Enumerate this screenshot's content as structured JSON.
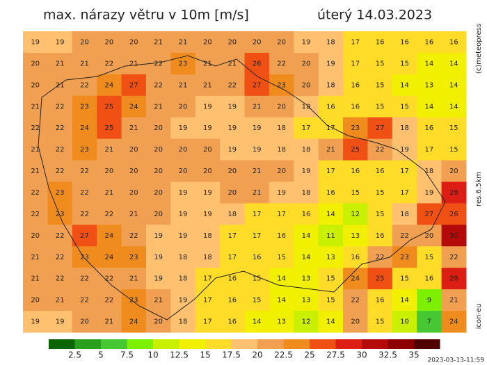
{
  "header": {
    "title": "max. nárazy větru v 10m [m/s]",
    "date": "úterý 14.03.2023"
  },
  "side_labels": [
    "(c)meteopress",
    "res.6.5km",
    "icon-eu"
  ],
  "timestamp": "2023-03-13-11:59",
  "legend": {
    "ticks": [
      2.5,
      5,
      7.5,
      10,
      12.5,
      15,
      17.5,
      20,
      22.5,
      25,
      27.5,
      30,
      32.5,
      35
    ],
    "colors": [
      "#0a6400",
      "#28a01e",
      "#46c832",
      "#7cf000",
      "#c8f000",
      "#f0f000",
      "#ffdc28",
      "#ffc070",
      "#f0a050",
      "#f08c1e",
      "#f05014",
      "#dc1e14",
      "#b40a0a",
      "#8c0000",
      "#500000"
    ]
  },
  "field": {
    "values": [
      [
        19,
        19,
        20,
        20,
        20,
        21,
        21,
        20,
        20,
        20,
        20,
        19,
        18,
        17,
        16,
        16,
        16,
        16
      ],
      [
        20,
        21,
        21,
        22,
        21,
        22,
        23,
        21,
        21,
        26,
        22,
        20,
        19,
        17,
        15,
        15,
        14,
        14
      ],
      [
        20,
        21,
        22,
        24,
        27,
        22,
        21,
        21,
        22,
        27,
        23,
        20,
        18,
        16,
        15,
        14,
        13,
        14
      ],
      [
        21,
        22,
        23,
        25,
        24,
        21,
        20,
        19,
        19,
        21,
        20,
        18,
        16,
        16,
        15,
        15,
        14,
        14
      ],
      [
        22,
        22,
        24,
        25,
        21,
        20,
        19,
        19,
        19,
        19,
        18,
        17,
        17,
        23,
        27,
        18,
        16,
        15
      ],
      [
        21,
        22,
        23,
        21,
        20,
        20,
        20,
        20,
        19,
        19,
        18,
        18,
        21,
        25,
        22,
        19,
        17,
        15
      ],
      [
        21,
        22,
        22,
        20,
        20,
        20,
        20,
        20,
        20,
        21,
        20,
        19,
        17,
        16,
        16,
        17,
        18,
        20
      ],
      [
        22,
        23,
        22,
        21,
        20,
        20,
        19,
        19,
        20,
        21,
        19,
        18,
        16,
        15,
        15,
        17,
        19,
        28
      ],
      [
        22,
        23,
        22,
        22,
        21,
        20,
        19,
        19,
        18,
        17,
        17,
        16,
        14,
        12,
        15,
        18,
        27,
        26
      ],
      [
        20,
        22,
        27,
        24,
        22,
        19,
        19,
        18,
        17,
        17,
        16,
        14,
        11,
        13,
        16,
        22,
        20,
        30
      ],
      [
        21,
        22,
        23,
        24,
        23,
        19,
        18,
        18,
        17,
        16,
        15,
        14,
        13,
        16,
        22,
        23,
        15,
        22
      ],
      [
        21,
        22,
        22,
        22,
        21,
        19,
        18,
        17,
        16,
        15,
        14,
        13,
        15,
        24,
        25,
        15,
        16,
        28
      ],
      [
        20,
        21,
        22,
        22,
        23,
        21,
        19,
        17,
        16,
        15,
        14,
        13,
        15,
        22,
        16,
        14,
        9,
        21
      ],
      [
        19,
        19,
        20,
        21,
        24,
        20,
        18,
        17,
        16,
        14,
        13,
        12,
        14,
        20,
        15,
        10,
        7,
        24
      ]
    ]
  }
}
